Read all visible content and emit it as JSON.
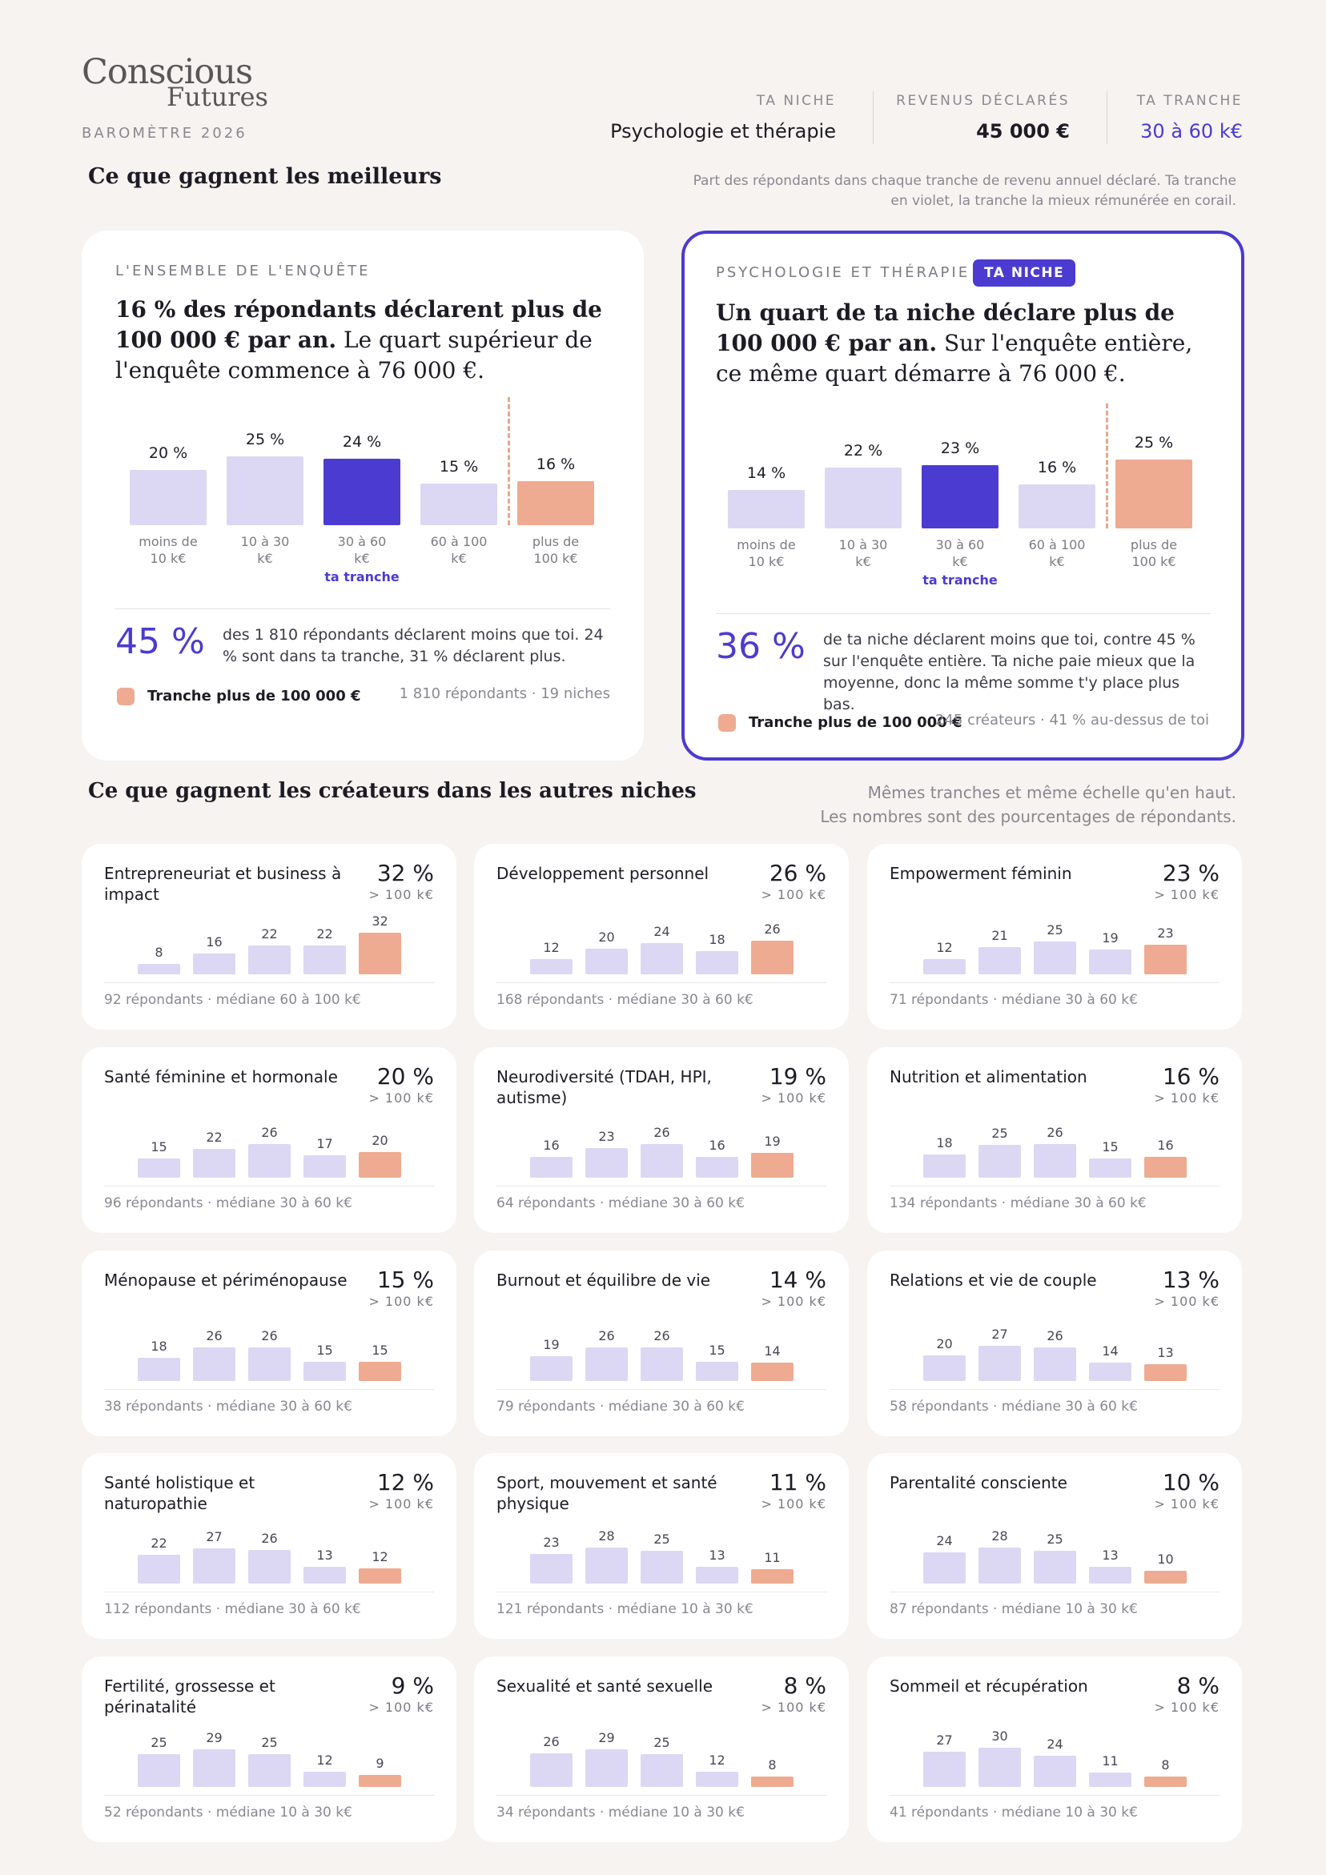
{
  "header": {
    "logo_line1": "Conscious",
    "logo_line2": "Futures",
    "barometre": "BAROMÈTRE 2026",
    "niche_label": "TA NICHE",
    "niche_value": "Psychologie et thérapie",
    "revenus_label": "REVENUS DÉCLARÉS",
    "revenus_value": "45 000 €",
    "tranche_label": "TA TRANCHE",
    "tranche_value": "30 à 60 k€"
  },
  "section1": {
    "title": "Ce que gagnent les meilleurs",
    "note_line1": "Part des répondants dans chaque tranche de revenu annuel déclaré. Ta tranche",
    "note_line2": "en violet, la tranche la mieux rémunérée en corail."
  },
  "colors": {
    "bar": "#dcd8f3",
    "ta_tranche": "#4b3bd1",
    "top_tranche": "#eeab91"
  },
  "card_all": {
    "label": "L'ENSEMBLE DE L'ENQUÊTE",
    "headline_bold": "16 % des répondants déclarent plus de 100 000 € par an.",
    "headline_rest": " Le quart supérieur de l'enquête commence à 76 000 €.",
    "ta_tranche": "ta tranche",
    "big_pct": "45 %",
    "desc": "des 1 810 répondants déclarent moins que toi. 24 % sont dans ta tranche, 31 % déclarent plus.",
    "legend": "Tranche plus de 100 000 €",
    "foot": "1 810 répondants · 19 niches"
  },
  "card_niche": {
    "label": "PSYCHOLOGIE ET THÉRAPIE",
    "badge": "TA NICHE",
    "headline_bold": "Un quart de ta niche déclare plus de 100 000 € par an.",
    "headline_rest": " Sur l'enquête entière, ce même quart démarre à 76 000 €.",
    "ta_tranche": "ta tranche",
    "big_pct": "36 %",
    "desc": "de ta niche déclarent moins que toi, contre 45 % sur l'enquête entière. Ta niche paie mieux que la moyenne, donc la même somme t'y place plus bas.",
    "legend": "Tranche plus de 100 000 €",
    "foot": "245 créateurs · 41 % au-dessus de toi"
  },
  "section2": {
    "title": "Ce que gagnent les créateurs dans les autres niches",
    "note_line1": "Mêmes tranches et même échelle qu'en haut.",
    "note_line2": "Les nombres sont des pourcentages de répondants."
  },
  "chart_data": [
    {
      "type": "bar",
      "title": "L'ENSEMBLE DE L'ENQUÊTE",
      "categories": [
        "moins de 10 k€",
        "10 à 30 k€",
        "30 à 60 k€",
        "60 à 100 k€",
        "plus de 100 k€"
      ],
      "values": [
        20,
        25,
        24,
        15,
        16
      ],
      "value_labels": [
        "20 %",
        "25 %",
        "24 %",
        "15 %",
        "16 %"
      ],
      "highlight": {
        "ta_tranche": 2,
        "top_tranche": 4
      }
    },
    {
      "type": "bar",
      "title": "PSYCHOLOGIE ET THÉRAPIE",
      "categories": [
        "moins de 10 k€",
        "10 à 30 k€",
        "30 à 60 k€",
        "60 à 100 k€",
        "plus de 100 k€"
      ],
      "values": [
        14,
        22,
        23,
        16,
        25
      ],
      "value_labels": [
        "14 %",
        "22 %",
        "23 %",
        "16 %",
        "25 %"
      ],
      "highlight": {
        "ta_tranche": 2,
        "top_tranche": 4
      }
    }
  ],
  "niches": [
    {
      "name": "Entrepreneuriat et business à impact",
      "pct": "32 %",
      "sub": "> 100 k€",
      "values": [
        8,
        16,
        22,
        22,
        32
      ],
      "foot": "92 répondants · médiane 60 à 100 k€"
    },
    {
      "name": "Développement personnel",
      "pct": "26 %",
      "sub": "> 100 k€",
      "values": [
        12,
        20,
        24,
        18,
        26
      ],
      "foot": "168 répondants · médiane 30 à 60 k€"
    },
    {
      "name": "Empowerment féminin",
      "pct": "23 %",
      "sub": "> 100 k€",
      "values": [
        12,
        21,
        25,
        19,
        23
      ],
      "foot": "71 répondants · médiane 30 à 60 k€"
    },
    {
      "name": "Santé féminine et hormonale",
      "pct": "20 %",
      "sub": "> 100 k€",
      "values": [
        15,
        22,
        26,
        17,
        20
      ],
      "foot": "96 répondants · médiane 30 à 60 k€"
    },
    {
      "name": "Neurodiversité (TDAH, HPI, autisme)",
      "pct": "19 %",
      "sub": "> 100 k€",
      "values": [
        16,
        23,
        26,
        16,
        19
      ],
      "foot": "64 répondants · médiane 30 à 60 k€"
    },
    {
      "name": "Nutrition et alimentation",
      "pct": "16 %",
      "sub": "> 100 k€",
      "values": [
        18,
        25,
        26,
        15,
        16
      ],
      "foot": "134 répondants · médiane 30 à 60 k€"
    },
    {
      "name": "Ménopause et périménopause",
      "pct": "15 %",
      "sub": "> 100 k€",
      "values": [
        18,
        26,
        26,
        15,
        15
      ],
      "foot": "38 répondants · médiane 30 à 60 k€"
    },
    {
      "name": "Burnout et équilibre de vie",
      "pct": "14 %",
      "sub": "> 100 k€",
      "values": [
        19,
        26,
        26,
        15,
        14
      ],
      "foot": "79 répondants · médiane 30 à 60 k€"
    },
    {
      "name": "Relations et vie de couple",
      "pct": "13 %",
      "sub": "> 100 k€",
      "values": [
        20,
        27,
        26,
        14,
        13
      ],
      "foot": "58 répondants · médiane 30 à 60 k€"
    },
    {
      "name": "Santé holistique et naturopathie",
      "pct": "12 %",
      "sub": "> 100 k€",
      "values": [
        22,
        27,
        26,
        13,
        12
      ],
      "foot": "112 répondants · médiane 30 à 60 k€"
    },
    {
      "name": "Sport, mouvement et santé physique",
      "pct": "11 %",
      "sub": "> 100 k€",
      "values": [
        23,
        28,
        25,
        13,
        11
      ],
      "foot": "121 répondants · médiane 10 à 30 k€"
    },
    {
      "name": "Parentalité consciente",
      "pct": "10 %",
      "sub": "> 100 k€",
      "values": [
        24,
        28,
        25,
        13,
        10
      ],
      "foot": "87 répondants · médiane 10 à 30 k€"
    },
    {
      "name": "Fertilité, grossesse et périnatalité",
      "pct": "9 %",
      "sub": "> 100 k€",
      "values": [
        25,
        29,
        25,
        12,
        9
      ],
      "foot": "52 répondants · médiane 10 à 30 k€"
    },
    {
      "name": "Sexualité et santé sexuelle",
      "pct": "8 %",
      "sub": "> 100 k€",
      "values": [
        26,
        29,
        25,
        12,
        8
      ],
      "foot": "34 répondants · médiane 10 à 30 k€"
    },
    {
      "name": "Sommeil et récupération",
      "pct": "8 %",
      "sub": "> 100 k€",
      "values": [
        27,
        30,
        24,
        11,
        8
      ],
      "foot": "41 répondants · médiane 10 à 30 k€"
    }
  ]
}
